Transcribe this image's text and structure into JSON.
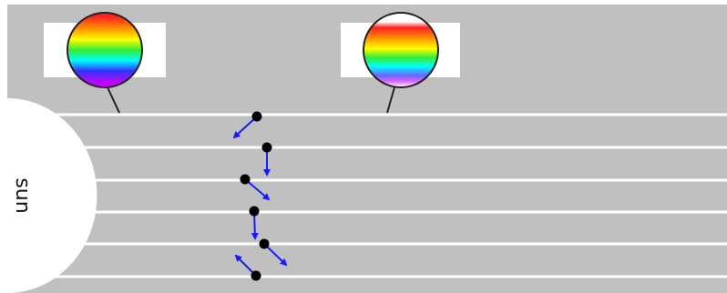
{
  "sun_label": "sun"
}
